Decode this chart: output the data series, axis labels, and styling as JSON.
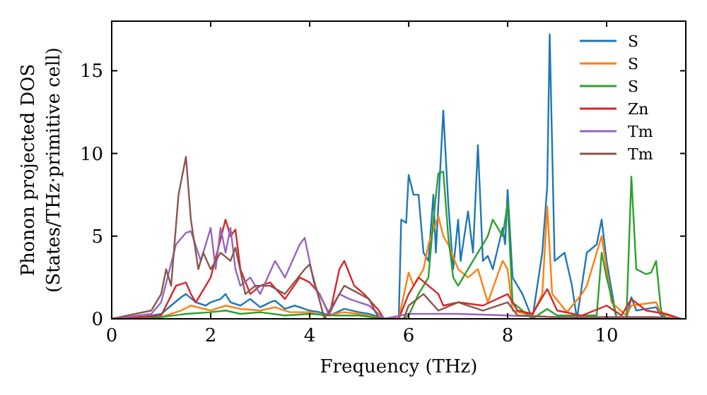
{
  "chart_data": {
    "type": "line",
    "xlabel": "Frequency (THz)",
    "ylabel": "Phonon projected DOS\n(States/THz·primitive cell)",
    "xlim": [
      0,
      11.6
    ],
    "ylim": [
      0,
      18
    ],
    "xticks": [
      0,
      2,
      4,
      6,
      8,
      10
    ],
    "yticks": [
      0,
      5,
      10,
      15
    ],
    "grid": false,
    "legend": "top right",
    "marker": "none",
    "line_style": "solid",
    "series": [
      {
        "name": "S",
        "color": "#1f77b4",
        "x": [
          0,
          0.6,
          1.0,
          1.2,
          1.4,
          1.5,
          1.7,
          1.9,
          2.0,
          2.2,
          2.3,
          2.4,
          2.6,
          2.8,
          3.0,
          3.2,
          3.3,
          3.5,
          3.7,
          4.0,
          4.2,
          4.4,
          4.7,
          5.0,
          5.2,
          5.5,
          5.8,
          5.85,
          5.95,
          6.0,
          6.1,
          6.2,
          6.3,
          6.4,
          6.5,
          6.55,
          6.7,
          6.8,
          6.9,
          7.0,
          7.05,
          7.2,
          7.3,
          7.4,
          7.5,
          7.6,
          7.7,
          7.9,
          7.95,
          8.0,
          8.1,
          8.3,
          8.5,
          8.7,
          8.8,
          8.85,
          8.95,
          9.15,
          9.3,
          9.4,
          9.6,
          9.8,
          9.9,
          10.0,
          10.2,
          10.4,
          10.5,
          10.6,
          11.0,
          11.1,
          11.2,
          11.5
        ],
        "values": [
          0,
          0.1,
          0.3,
          0.8,
          1.3,
          1.5,
          1.0,
          0.8,
          1.0,
          1.2,
          1.5,
          1.0,
          0.8,
          1.2,
          0.7,
          1.0,
          1.1,
          0.6,
          0.8,
          0.5,
          0.4,
          0.2,
          0.6,
          0.4,
          0.3,
          0,
          0,
          6.0,
          5.8,
          8.7,
          7.5,
          7.5,
          4.0,
          3.5,
          7.5,
          4.0,
          12.6,
          7.0,
          3.0,
          6.0,
          3.5,
          6.5,
          4.0,
          10.5,
          3.5,
          3.8,
          3.0,
          5.5,
          4.5,
          7.8,
          2.5,
          1.5,
          0,
          4.0,
          8.0,
          17.2,
          3.5,
          4.0,
          2.0,
          0,
          4.0,
          4.5,
          6.0,
          3.5,
          0,
          0,
          1.3,
          0.5,
          0.7,
          0.2,
          0,
          0
        ]
      },
      {
        "name": "S",
        "color": "#ff7f0e",
        "x": [
          0,
          1.0,
          1.4,
          1.6,
          2.0,
          2.3,
          2.6,
          3.0,
          3.3,
          3.6,
          4.0,
          4.3,
          4.7,
          5.0,
          5.5,
          5.8,
          6.0,
          6.1,
          6.3,
          6.4,
          6.6,
          6.7,
          6.8,
          7.0,
          7.2,
          7.4,
          7.6,
          7.9,
          8.0,
          8.1,
          8.5,
          8.7,
          8.8,
          8.9,
          9.2,
          9.5,
          9.6,
          9.9,
          10.1,
          10.4,
          10.5,
          11.0,
          11.1,
          11.5
        ],
        "values": [
          0,
          0.1,
          0.5,
          0.8,
          0.5,
          0.8,
          0.6,
          0.5,
          0.7,
          0.4,
          0.4,
          0.2,
          0.4,
          0.3,
          0,
          0,
          2.8,
          2.0,
          3.0,
          4.5,
          6.2,
          5.0,
          4.5,
          3.0,
          2.5,
          3.0,
          1.0,
          3.5,
          3.0,
          0.5,
          0.2,
          1.5,
          6.8,
          1.5,
          0.4,
          1.5,
          2.0,
          5.0,
          1.0,
          0.2,
          0.8,
          1.0,
          0.3,
          0
        ]
      },
      {
        "name": "S",
        "color": "#2ca02c",
        "x": [
          0,
          1.0,
          1.5,
          2.0,
          2.3,
          2.6,
          3.0,
          3.5,
          4.0,
          4.5,
          5.0,
          5.5,
          5.9,
          6.0,
          6.2,
          6.4,
          6.5,
          6.6,
          6.7,
          6.8,
          6.9,
          7.0,
          7.2,
          7.4,
          7.6,
          7.7,
          7.9,
          8.0,
          8.1,
          8.5,
          8.8,
          9.0,
          9.8,
          9.9,
          10.0,
          10.2,
          10.4,
          10.5,
          10.6,
          10.8,
          10.9,
          11.0,
          11.1,
          11.2,
          11.5
        ],
        "values": [
          0,
          0.1,
          0.3,
          0.4,
          0.5,
          0.3,
          0.4,
          0.2,
          0.3,
          0.2,
          0.2,
          0,
          0,
          0.2,
          1.5,
          2.5,
          6.0,
          8.8,
          8.9,
          5.0,
          2.5,
          2.0,
          3.0,
          4.0,
          5.0,
          6.0,
          5.0,
          7.0,
          1.0,
          0,
          0.6,
          0.2,
          0.2,
          4.0,
          2.5,
          0.1,
          0,
          8.6,
          3.0,
          2.7,
          2.8,
          3.5,
          0.5,
          0,
          0
        ]
      },
      {
        "name": "Zn",
        "color": "#d62728",
        "x": [
          0,
          1.0,
          1.3,
          1.5,
          1.6,
          1.7,
          2.0,
          2.3,
          2.4,
          2.5,
          2.6,
          2.8,
          3.0,
          3.2,
          3.5,
          3.8,
          4.0,
          4.2,
          4.4,
          4.6,
          4.7,
          4.9,
          5.1,
          5.4,
          5.5,
          5.8,
          6.0,
          6.2,
          6.4,
          6.6,
          6.7,
          7.0,
          7.5,
          8.0,
          8.2,
          8.5,
          8.8,
          9.0,
          9.5,
          10.0,
          10.3,
          10.5,
          10.8,
          11.2,
          11.5
        ],
        "values": [
          0,
          0.2,
          2.0,
          2.2,
          1.5,
          1.0,
          2.5,
          6.0,
          5.0,
          5.4,
          3.0,
          1.5,
          2.0,
          2.2,
          1.2,
          2.5,
          2.2,
          1.5,
          0.2,
          3.0,
          3.5,
          2.0,
          1.5,
          0.5,
          0,
          0,
          1.5,
          2.5,
          2.0,
          1.5,
          0.8,
          1.0,
          0.8,
          1.5,
          0.5,
          0.3,
          1.8,
          0.5,
          0.2,
          0.8,
          0.2,
          1.2,
          0.5,
          0.3,
          0
        ]
      },
      {
        "name": "Tm",
        "color": "#9467bd",
        "x": [
          0,
          0.8,
          1.0,
          1.3,
          1.5,
          1.6,
          1.8,
          2.0,
          2.1,
          2.2,
          2.3,
          2.4,
          2.5,
          2.6,
          2.8,
          3.0,
          3.3,
          3.5,
          3.8,
          3.9,
          4.1,
          4.4,
          4.6,
          4.8,
          5.2,
          5.5,
          6.0,
          7.0,
          8.0,
          9.0,
          10.0,
          11.0,
          11.5
        ],
        "values": [
          0,
          0.3,
          1.0,
          4.5,
          5.2,
          5.3,
          3.5,
          5.5,
          3.0,
          5.5,
          4.0,
          5.5,
          3.0,
          2.0,
          2.5,
          1.5,
          3.5,
          2.5,
          4.5,
          4.9,
          2.0,
          0.3,
          1.5,
          1.2,
          0.8,
          0,
          0.3,
          0.3,
          0.2,
          0.1,
          0.1,
          0.1,
          0
        ]
      },
      {
        "name": "Tm",
        "color": "#8c564b",
        "x": [
          0,
          0.8,
          1.0,
          1.1,
          1.2,
          1.35,
          1.5,
          1.6,
          1.75,
          1.85,
          2.0,
          2.2,
          2.4,
          2.5,
          2.7,
          2.9,
          3.2,
          3.5,
          3.9,
          4.0,
          4.3,
          4.6,
          4.7,
          5.2,
          5.4,
          5.9,
          6.0,
          6.3,
          6.6,
          7.0,
          7.5,
          8.0,
          8.2,
          9.0,
          10.0,
          11.0,
          11.5
        ],
        "values": [
          0,
          0.5,
          1.5,
          3.0,
          2.0,
          7.5,
          9.8,
          6.0,
          3.0,
          4.0,
          3.0,
          4.0,
          3.5,
          4.3,
          1.5,
          2.0,
          2.0,
          1.5,
          3.0,
          3.3,
          0,
          1.5,
          2.0,
          1.2,
          0,
          0,
          0.8,
          1.5,
          0.5,
          1.0,
          0.5,
          1.0,
          0.2,
          0.1,
          0.1,
          0.1,
          0
        ]
      }
    ]
  }
}
